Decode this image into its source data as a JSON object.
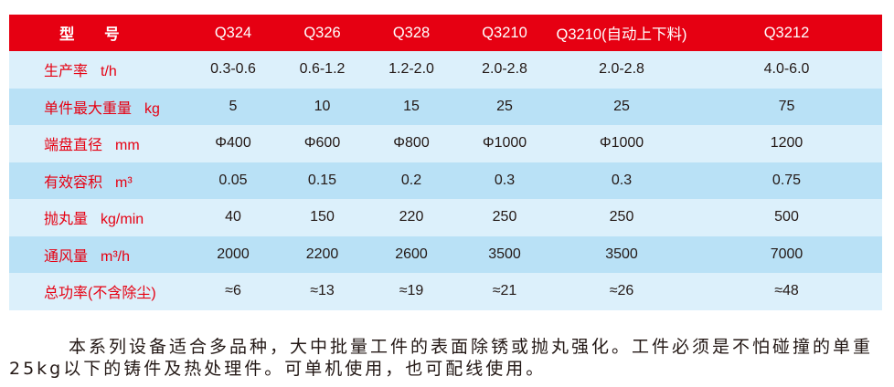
{
  "table": {
    "header": [
      "型 号",
      "Q324",
      "Q326",
      "Q328",
      "Q3210",
      "Q3210(自动上下料)",
      "Q3212"
    ],
    "rows": [
      {
        "label": "生产率",
        "unit": "t/h",
        "values": [
          "0.3-0.6",
          "0.6-1.2",
          "1.2-2.0",
          "2.0-2.8",
          "2.0-2.8",
          "4.0-6.0"
        ]
      },
      {
        "label": "单件最大重量",
        "unit": "kg",
        "values": [
          "5",
          "10",
          "15",
          "25",
          "25",
          "75"
        ]
      },
      {
        "label": "端盘直径",
        "unit": "mm",
        "values": [
          "Φ400",
          "Φ600",
          "Φ800",
          "Φ1000",
          "Φ1000",
          "1200"
        ]
      },
      {
        "label": "有效容积",
        "unit": "m³",
        "values": [
          "0.05",
          "0.15",
          "0.2",
          "0.3",
          "0.3",
          "0.75"
        ]
      },
      {
        "label": "抛丸量",
        "unit": "kg/min",
        "values": [
          "40",
          "150",
          "220",
          "250",
          "250",
          "500"
        ]
      },
      {
        "label": "通风量",
        "unit": "m³/h",
        "values": [
          "2000",
          "2200",
          "2600",
          "3500",
          "3500",
          "7000"
        ]
      },
      {
        "label": "总功率(不含除尘)",
        "unit": "",
        "values": [
          "≈6",
          "≈13",
          "≈19",
          "≈21",
          "≈26",
          "≈48"
        ]
      }
    ]
  },
  "description": {
    "lines": [
      "本系列设备适合多品种，大中批量工件的表面除锈或抛丸强化。工件必须是不怕碰撞的单重",
      "25kg以下的铸件及热处理件。可单机使用，也可配线使用。"
    ]
  },
  "colors": {
    "header": "#e60012",
    "row_light": "#dcf0fb",
    "row_dark": "#b9e1f6",
    "label": "#e60012"
  }
}
